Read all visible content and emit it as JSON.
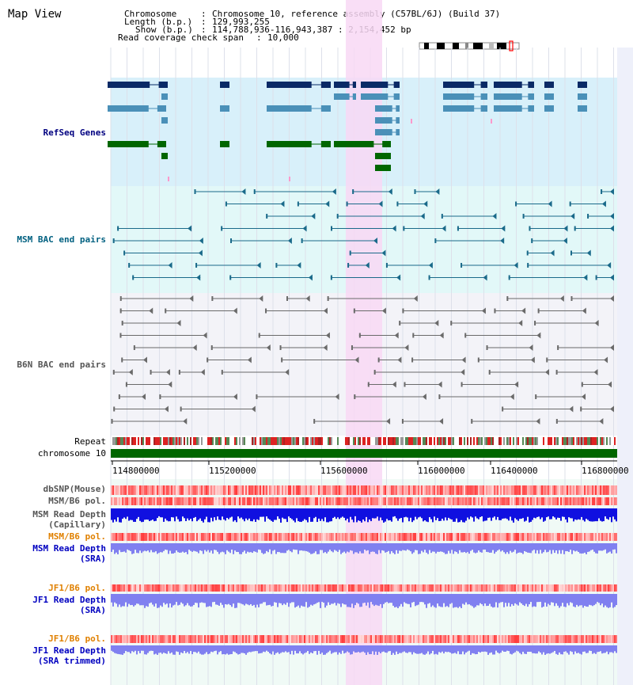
{
  "page": {
    "title": "Map View"
  },
  "header": {
    "chromosome_label": "Chromosome",
    "chromosome_value": "Chromosome 10, reference assembly (C57BL/6J) (Build 37)",
    "length_label": "Length (b.p.)",
    "length_value": "129,993,255",
    "show_label": "Show (b.p.)",
    "show_value": "114,788,936-116,943,387 : 2,154,452 bp",
    "coverage_label": "Read coverage check span",
    "coverage_value": "10,000"
  },
  "tracks": {
    "refseq": "RefSeq Genes",
    "msm_bac": "MSM BAC end pairs",
    "b6n_bac": "B6N BAC end pairs",
    "repeat": "Repeat",
    "chromosome": "chromosome 10",
    "dbsnp": "dbSNP(Mouse)",
    "msm_pol1": "MSM/B6 pol.",
    "msm_depth_cap_1": "MSM Read Depth",
    "msm_depth_cap_2": "(Capillary)",
    "msm_pol2": "MSM/B6 pol.",
    "msm_depth_sra_1": "MSM Read Depth",
    "msm_depth_sra_2": "(SRA)",
    "jf1_pol1": "JF1/B6 pol.",
    "jf1_depth_sra_1": "JF1 Read Depth",
    "jf1_depth_sra_2": "(SRA)",
    "jf1_pol2": "JF1/B6 pol.",
    "jf1_depth_trim_1": "JF1 Read Depth",
    "jf1_depth_trim_2": "(SRA trimmed)"
  },
  "axis": {
    "ticks": [
      "114800000",
      "115200000",
      "115600000",
      "116000000",
      "116400000",
      "116800000"
    ]
  },
  "colors": {
    "refseq_bg": "#d8f0fa",
    "msm_bg": "#e2f8f8",
    "b6n_bg": "#f3f3f8",
    "highlight": "#f8d8f4",
    "chrom_green": "#006600",
    "gene_navy": "#0a2a66",
    "gene_steel": "#4a90b8",
    "gene_green": "#006600",
    "bac_teal": "#1a6a8a",
    "bac_gray": "#6a6a6a",
    "depth_blue": "#1010e0",
    "depth_light": "#8080f0"
  }
}
